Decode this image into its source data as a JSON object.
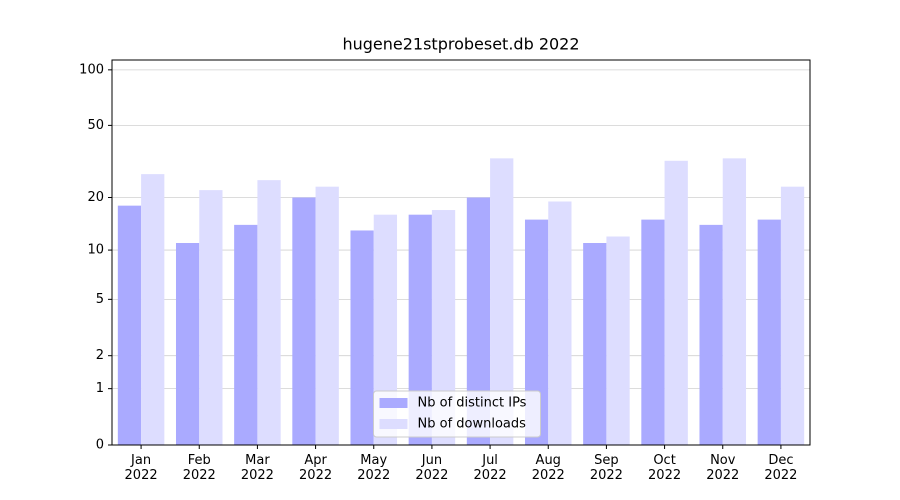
{
  "chart_data": {
    "type": "bar",
    "title": "hugene21stprobeset.db 2022",
    "categories": [
      "Jan\n2022",
      "Feb\n2022",
      "Mar\n2022",
      "Apr\n2022",
      "May\n2022",
      "Jun\n2022",
      "Jul\n2022",
      "Aug\n2022",
      "Sep\n2022",
      "Oct\n2022",
      "Nov\n2022",
      "Dec\n2022"
    ],
    "series": [
      {
        "name": "Nb of distinct IPs",
        "color": "#aaaaff",
        "values": [
          18,
          11,
          14,
          20,
          13,
          16,
          20,
          15,
          11,
          15,
          14,
          15
        ]
      },
      {
        "name": "Nb of downloads",
        "color": "#ddddff",
        "values": [
          27,
          22,
          25,
          23,
          16,
          17,
          33,
          19,
          12,
          32,
          33,
          23
        ]
      }
    ],
    "y_scale": "log1p",
    "ylim": [
      0,
      113
    ],
    "yticks": [
      0,
      1,
      2,
      5,
      10,
      20,
      50,
      100
    ],
    "grid": true,
    "legend": "lower center"
  }
}
